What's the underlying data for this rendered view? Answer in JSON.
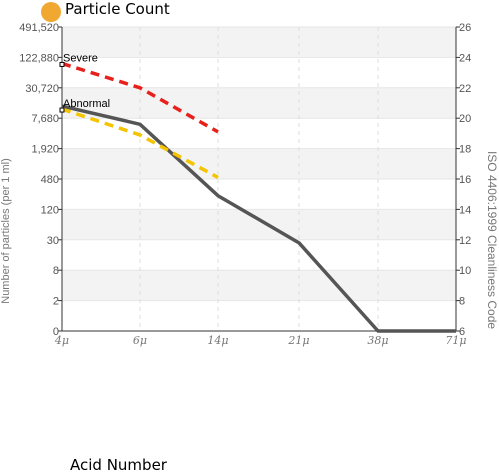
{
  "chart_data": {
    "type": "line",
    "legend": {
      "label": "Particle Count",
      "color": "#f0a830",
      "placement": "top-left"
    },
    "xlabel": "Acid Number",
    "ylabel": "Number of particles (per 1 ml)",
    "y2label": "ISO 4406:1999 Cleanliness Code",
    "x_categories": [
      "4μ",
      "6μ",
      "14μ",
      "21μ",
      "38μ",
      "71μ"
    ],
    "y_ticks": [
      "0",
      "2",
      "8",
      "30",
      "120",
      "480",
      "1,920",
      "7,680",
      "30,720",
      "122,880",
      "491,520"
    ],
    "y2_ticks": [
      "6",
      "8",
      "10",
      "12",
      "14",
      "16",
      "18",
      "20",
      "22",
      "24",
      "26"
    ],
    "y2_range": [
      6,
      26
    ],
    "grid": true,
    "series": [
      {
        "key": "particle",
        "color": "#555555",
        "dash": "none",
        "width": 3.5,
        "points": [
          [
            0,
            20.8
          ],
          [
            1,
            19.6
          ],
          [
            2,
            14.9
          ],
          [
            3,
            11.8
          ],
          [
            4,
            6
          ],
          [
            5,
            6
          ]
        ]
      },
      {
        "key": "severe",
        "color": "#e8201c",
        "dash": "9,6",
        "width": 3.5,
        "points": [
          [
            0,
            23.6
          ],
          [
            1,
            22.0
          ],
          [
            2,
            19.1
          ]
        ]
      },
      {
        "key": "abnormal",
        "color": "#f5c400",
        "dash": "9,6",
        "width": 3.5,
        "points": [
          [
            0,
            20.6
          ],
          [
            1,
            18.9
          ],
          [
            2,
            16.1
          ]
        ]
      }
    ],
    "annotations": [
      {
        "label": "Severe",
        "x": 0,
        "y": 23.8
      },
      {
        "label": "Abnormal",
        "x": 0,
        "y": 20.8
      }
    ]
  }
}
